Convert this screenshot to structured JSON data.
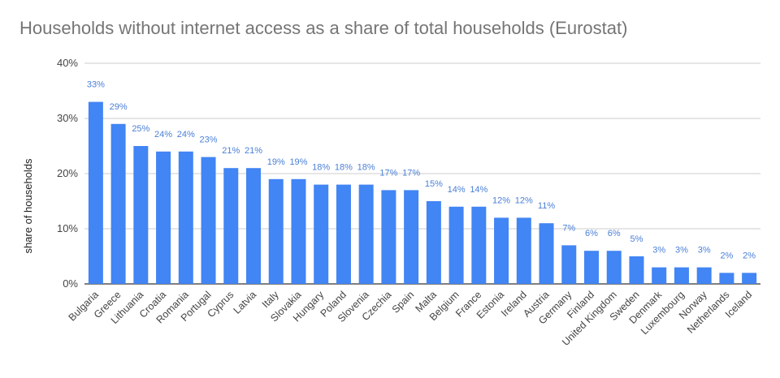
{
  "chart_data": {
    "type": "bar",
    "title": "Households without internet access as a share of total households (Eurostat)",
    "xlabel": "",
    "ylabel": "share of households",
    "ylim": [
      0,
      40
    ],
    "yticks": [
      "0%",
      "10%",
      "20%",
      "30%",
      "40%"
    ],
    "ytick_values": [
      0,
      10,
      20,
      30,
      40
    ],
    "grid": true,
    "bar_color": "#4285f4",
    "categories": [
      "Bulgaria",
      "Greece",
      "Lithuania",
      "Croatia",
      "Romania",
      "Portugal",
      "Cyprus",
      "Latvia",
      "Italy",
      "Slovakia",
      "Hungary",
      "Poland",
      "Slovenia",
      "Czechia",
      "Spain",
      "Malta",
      "Belgium",
      "France",
      "Estonia",
      "Ireland",
      "Austria",
      "Germany",
      "Finland",
      "United Kingdom",
      "Sweden",
      "Denmark",
      "Luxembourg",
      "Norway",
      "Netherlands",
      "Iceland"
    ],
    "values": [
      33,
      29,
      25,
      24,
      24,
      23,
      21,
      21,
      19,
      19,
      18,
      18,
      18,
      17,
      17,
      15,
      14,
      14,
      12,
      12,
      11,
      7,
      6,
      6,
      5,
      3,
      3,
      3,
      2,
      2
    ],
    "data_labels": [
      "33%",
      "29%",
      "25%",
      "24%",
      "24%",
      "23%",
      "21%",
      "21%",
      "19%",
      "19%",
      "18%",
      "18%",
      "18%",
      "17%",
      "17%",
      "15%",
      "14%",
      "14%",
      "12%",
      "12%",
      "11%",
      "7%",
      "6%",
      "6%",
      "5%",
      "3%",
      "3%",
      "3%",
      "2%",
      "2%"
    ]
  }
}
